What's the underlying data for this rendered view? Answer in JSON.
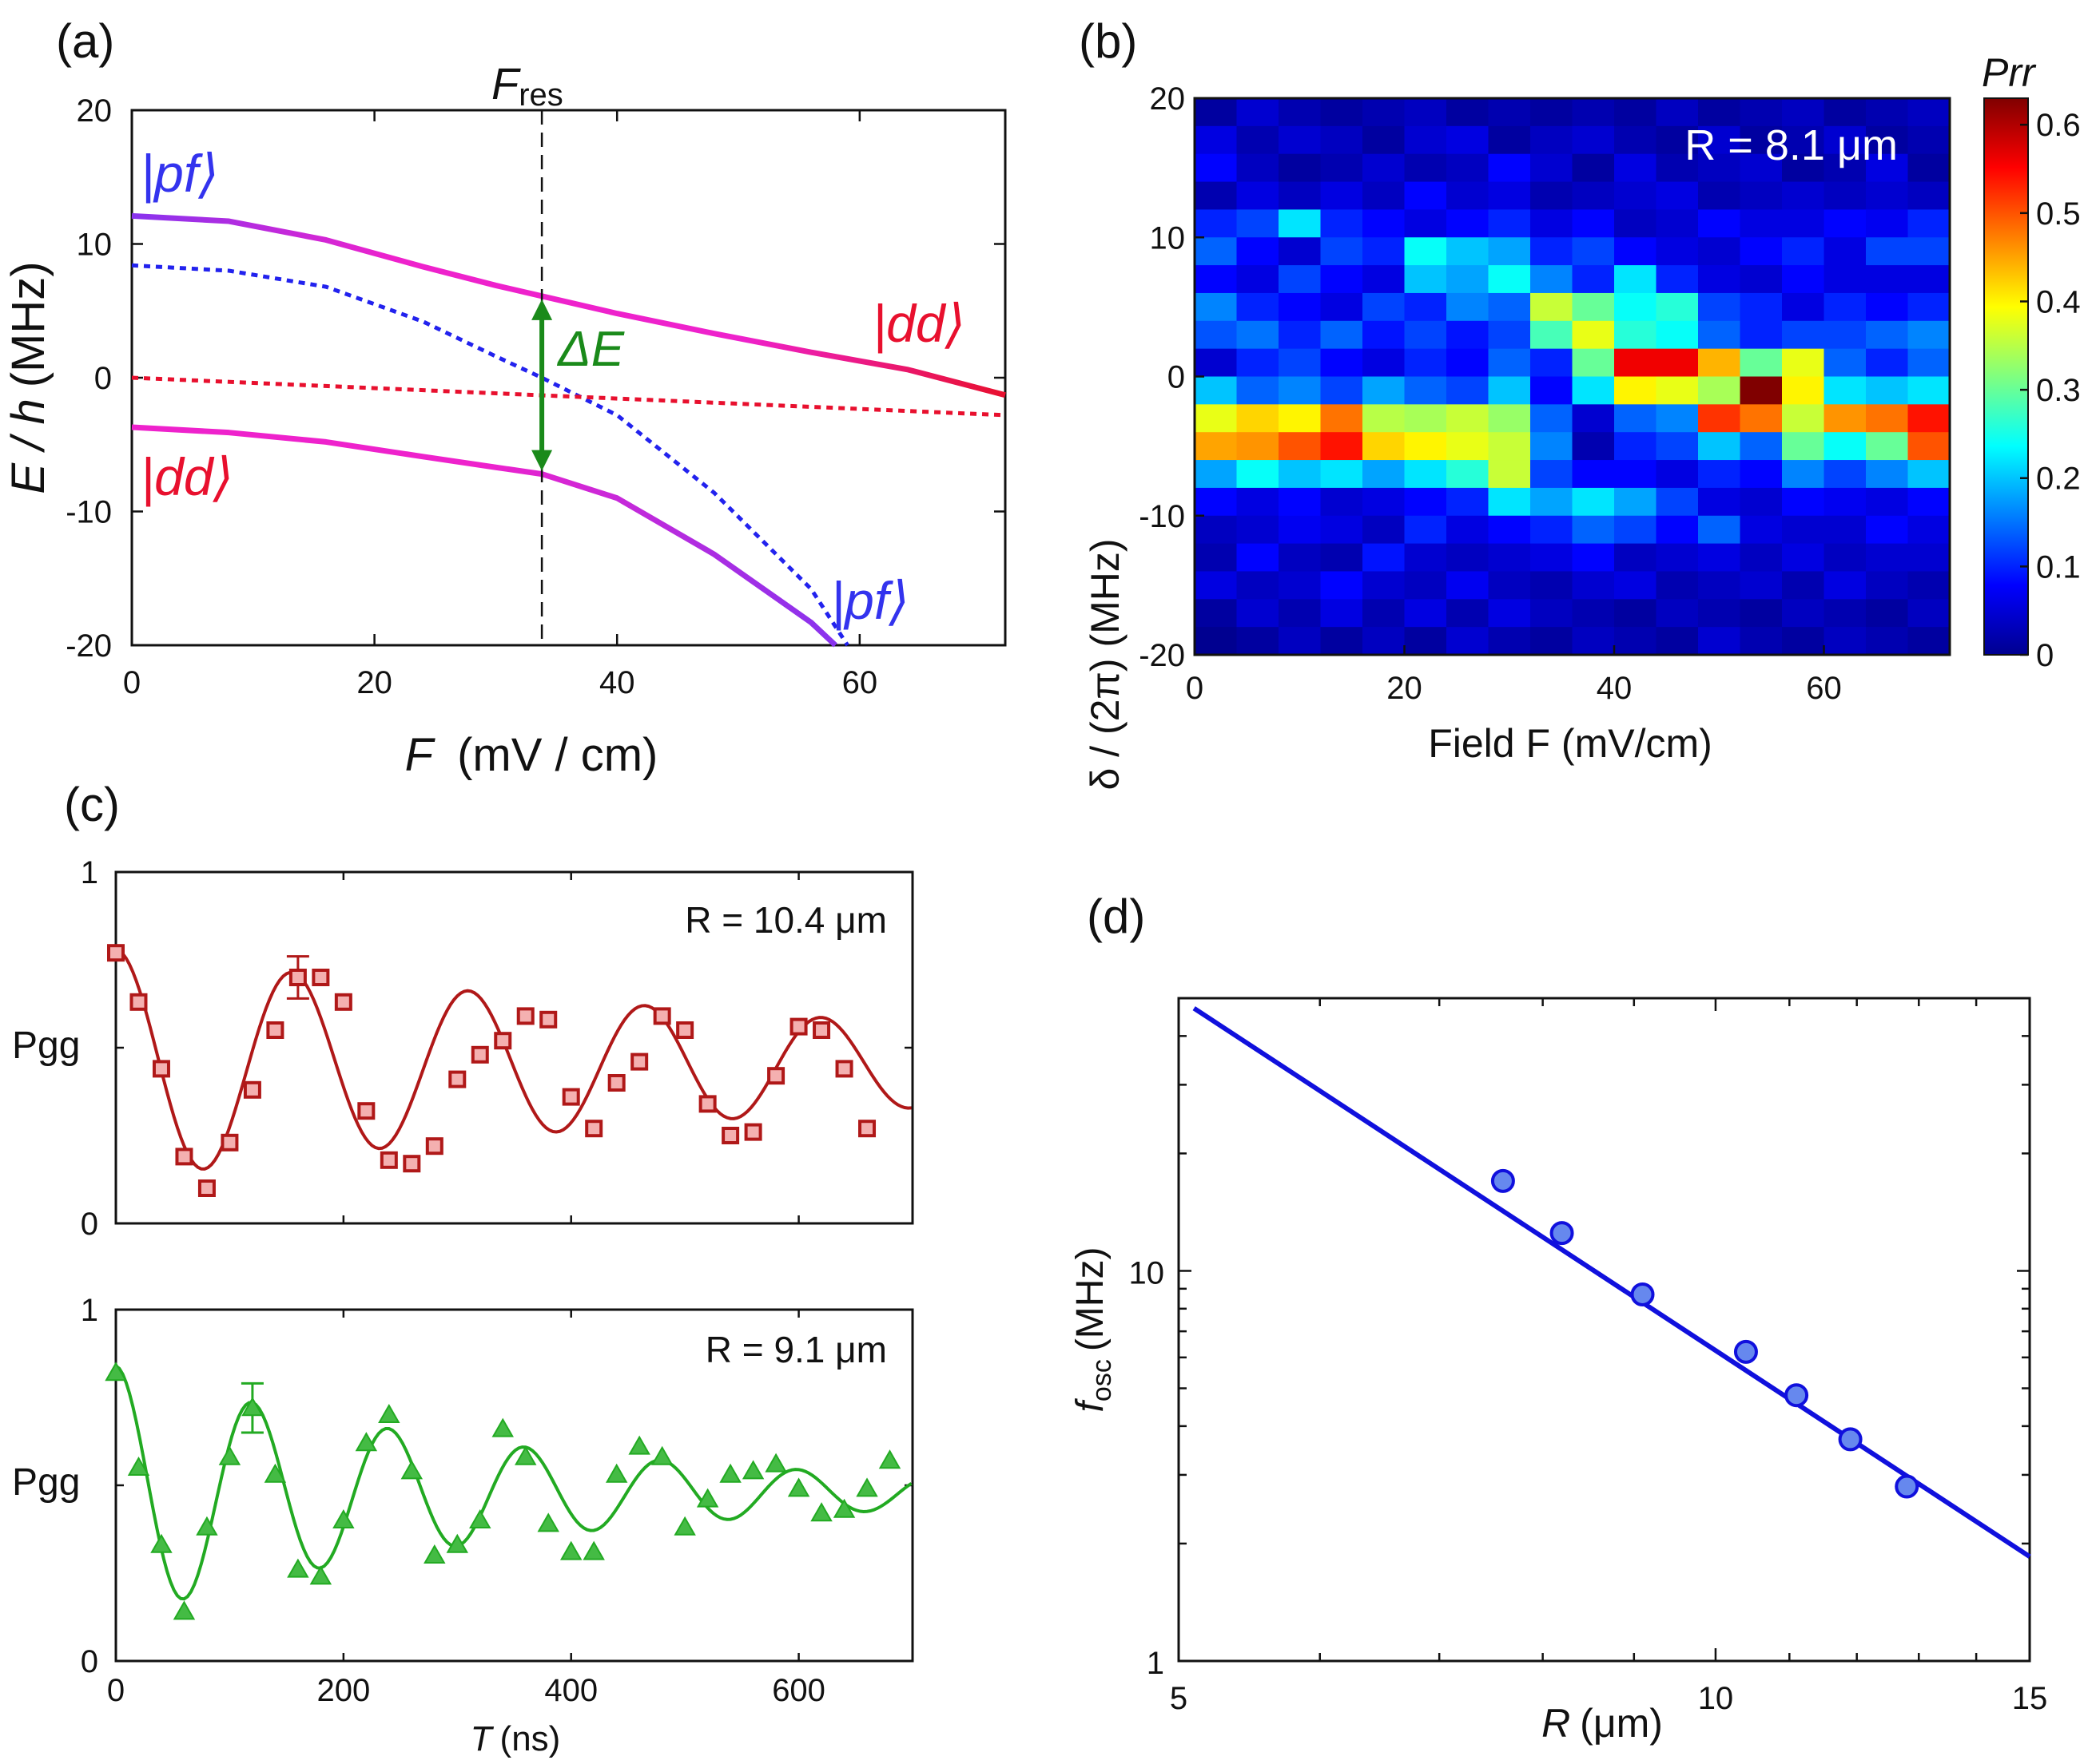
{
  "panel_labels": [
    "(a)",
    "(b)",
    "(c)",
    "(d)"
  ],
  "colors": {
    "red": "#e8102e",
    "blue": "#2222ee",
    "magenta": "#ee22cc",
    "purple": "#8833ee",
    "green_arrow": "#1a8a1a",
    "dark_red": "#b01818",
    "green": "#22aa22",
    "fit_blue": "#1010dd",
    "point_blue": "#6688ee"
  },
  "chart_data": [
    {
      "id": "a",
      "type": "line",
      "title": "",
      "xlabel_var": "F",
      "xlabel_unit": "(mV / cm)",
      "ylabel_var": "E / h",
      "ylabel_unit": "(MHz)",
      "xlim": [
        0,
        72
      ],
      "ylim": [
        -20,
        20
      ],
      "xticks": [
        0,
        20,
        40,
        60
      ],
      "yticks": [
        20,
        10,
        0,
        -10,
        -20
      ],
      "ytick_labels": [
        "20",
        "10",
        "0",
        "-10",
        "-20"
      ],
      "marker_label": "F",
      "marker_sub": "res",
      "marker_x": 33.8,
      "delta_label": "ΔE",
      "state_labels": {
        "pf": "|pf⟩",
        "dd": "|dd⟩"
      },
      "series": [
        {
          "name": "upper adiabatic",
          "style": "solid",
          "x": [
            0,
            8,
            16,
            24,
            30,
            33.8,
            40,
            48,
            56,
            64,
            72
          ],
          "y": [
            12.1,
            11.7,
            10.3,
            8.3,
            6.9,
            6.1,
            4.8,
            3.3,
            1.9,
            0.6,
            -1.3
          ]
        },
        {
          "name": "lower adiabatic",
          "style": "solid",
          "x": [
            0,
            8,
            16,
            24,
            30,
            33.8,
            40,
            48,
            56,
            58
          ],
          "y": [
            -3.7,
            -4.1,
            -4.8,
            -5.9,
            -6.7,
            -7.2,
            -9.0,
            -13.2,
            -18.3,
            -20
          ]
        },
        {
          "name": "pf diabatic",
          "style": "dotted",
          "x": [
            0,
            8,
            16,
            24,
            30,
            33.8,
            40,
            48,
            56,
            59
          ],
          "y": [
            8.4,
            8.0,
            6.8,
            4.2,
            1.6,
            0,
            -2.8,
            -8.6,
            -15.8,
            -20
          ]
        },
        {
          "name": "dd diabatic",
          "style": "dotted",
          "x": [
            0,
            72
          ],
          "y": [
            0,
            -2.8
          ]
        }
      ]
    },
    {
      "id": "b",
      "type": "heatmap",
      "xlabel": "Field F (mV/cm)",
      "ylabel": "δ / (2π) (MHz)",
      "annotation": "R = 8.1 μm",
      "colorbar_label": "Prr",
      "xlim": [
        0,
        72
      ],
      "ylim": [
        -20,
        20
      ],
      "clim": [
        0,
        0.63
      ],
      "xticks": [
        0,
        20,
        40,
        60
      ],
      "yticks": [
        20,
        10,
        0,
        -10,
        -20
      ],
      "ytick_labels": [
        "20",
        "10",
        "0",
        "-10",
        "-20"
      ],
      "cbticks": [
        0,
        0.1,
        0.2,
        0.3,
        0.4,
        0.5,
        0.6
      ],
      "cbtick_labels": [
        "0",
        "0.1",
        "0.2",
        "0.3",
        "0.4",
        "0.5",
        "0.6"
      ],
      "x_centers": [
        2,
        6,
        10,
        14,
        18,
        22,
        26,
        30,
        34,
        38,
        42,
        46,
        50,
        54,
        58,
        62,
        66,
        70
      ],
      "y_centers": [
        19,
        17,
        15,
        13,
        11,
        9,
        7,
        5,
        3,
        1,
        -1,
        -3,
        -5,
        -7,
        -9,
        -11,
        -13,
        -15,
        -17,
        -19
      ],
      "columns": [
        [
          0.02,
          0.06,
          0.08,
          0.03,
          0.1,
          0.14,
          0.08,
          0.16,
          0.13,
          0.05,
          0.2,
          0.38,
          0.45,
          0.18,
          0.08,
          0.04,
          0.03,
          0.06,
          0.02,
          0.01
        ],
        [
          0.05,
          0.03,
          0.04,
          0.06,
          0.12,
          0.08,
          0.06,
          0.1,
          0.15,
          0.1,
          0.14,
          0.42,
          0.46,
          0.24,
          0.06,
          0.05,
          0.08,
          0.04,
          0.05,
          0.02
        ],
        [
          0.03,
          0.05,
          0.02,
          0.04,
          0.22,
          0.05,
          0.12,
          0.08,
          0.1,
          0.12,
          0.16,
          0.4,
          0.5,
          0.2,
          0.08,
          0.07,
          0.04,
          0.05,
          0.03,
          0.04
        ],
        [
          0.02,
          0.04,
          0.03,
          0.06,
          0.1,
          0.12,
          0.08,
          0.06,
          0.14,
          0.08,
          0.12,
          0.48,
          0.54,
          0.22,
          0.05,
          0.06,
          0.03,
          0.08,
          0.06,
          0.02
        ],
        [
          0.03,
          0.02,
          0.05,
          0.04,
          0.08,
          0.1,
          0.06,
          0.12,
          0.09,
          0.06,
          0.18,
          0.35,
          0.42,
          0.18,
          0.06,
          0.04,
          0.09,
          0.05,
          0.03,
          0.04
        ],
        [
          0.04,
          0.05,
          0.03,
          0.08,
          0.06,
          0.24,
          0.2,
          0.1,
          0.12,
          0.1,
          0.14,
          0.34,
          0.4,
          0.22,
          0.08,
          0.1,
          0.05,
          0.04,
          0.06,
          0.02
        ],
        [
          0.02,
          0.06,
          0.04,
          0.05,
          0.08,
          0.2,
          0.18,
          0.16,
          0.09,
          0.08,
          0.12,
          0.36,
          0.38,
          0.26,
          0.1,
          0.06,
          0.04,
          0.07,
          0.03,
          0.05
        ],
        [
          0.03,
          0.02,
          0.08,
          0.06,
          0.1,
          0.18,
          0.24,
          0.14,
          0.12,
          0.14,
          0.2,
          0.33,
          0.36,
          0.36,
          0.22,
          0.08,
          0.05,
          0.04,
          0.06,
          0.03
        ],
        [
          0.02,
          0.04,
          0.05,
          0.03,
          0.06,
          0.1,
          0.16,
          0.36,
          0.28,
          0.1,
          0.08,
          0.14,
          0.16,
          0.12,
          0.18,
          0.1,
          0.06,
          0.03,
          0.04,
          0.02
        ],
        [
          0.03,
          0.05,
          0.02,
          0.04,
          0.08,
          0.12,
          0.1,
          0.3,
          0.38,
          0.3,
          0.22,
          0.05,
          0.03,
          0.08,
          0.22,
          0.14,
          0.08,
          0.05,
          0.03,
          0.04
        ],
        [
          0.02,
          0.03,
          0.06,
          0.05,
          0.04,
          0.08,
          0.22,
          0.24,
          0.26,
          0.56,
          0.4,
          0.14,
          0.1,
          0.08,
          0.18,
          0.12,
          0.04,
          0.06,
          0.02,
          0.03
        ],
        [
          0.04,
          0.02,
          0.03,
          0.06,
          0.05,
          0.06,
          0.1,
          0.26,
          0.24,
          0.56,
          0.38,
          0.16,
          0.12,
          0.06,
          0.12,
          0.08,
          0.05,
          0.03,
          0.04,
          0.02
        ],
        [
          0.02,
          0.05,
          0.04,
          0.03,
          0.08,
          0.05,
          0.06,
          0.12,
          0.14,
          0.44,
          0.34,
          0.52,
          0.2,
          0.1,
          0.06,
          0.14,
          0.06,
          0.04,
          0.03,
          0.05
        ],
        [
          0.03,
          0.02,
          0.05,
          0.04,
          0.06,
          0.08,
          0.05,
          0.1,
          0.1,
          0.3,
          0.63,
          0.48,
          0.14,
          0.08,
          0.05,
          0.06,
          0.04,
          0.05,
          0.02,
          0.03
        ],
        [
          0.04,
          0.03,
          0.02,
          0.05,
          0.06,
          0.1,
          0.08,
          0.06,
          0.12,
          0.38,
          0.4,
          0.36,
          0.3,
          0.16,
          0.08,
          0.05,
          0.06,
          0.03,
          0.04,
          0.02
        ],
        [
          0.02,
          0.05,
          0.03,
          0.04,
          0.08,
          0.06,
          0.06,
          0.1,
          0.12,
          0.14,
          0.22,
          0.46,
          0.24,
          0.12,
          0.07,
          0.05,
          0.04,
          0.06,
          0.03,
          0.04
        ],
        [
          0.03,
          0.02,
          0.06,
          0.05,
          0.07,
          0.12,
          0.06,
          0.08,
          0.14,
          0.1,
          0.2,
          0.48,
          0.3,
          0.16,
          0.06,
          0.08,
          0.05,
          0.04,
          0.02,
          0.03
        ],
        [
          0.04,
          0.03,
          0.02,
          0.04,
          0.1,
          0.12,
          0.06,
          0.1,
          0.16,
          0.14,
          0.22,
          0.54,
          0.5,
          0.2,
          0.08,
          0.06,
          0.05,
          0.03,
          0.04,
          0.02
        ]
      ]
    },
    {
      "id": "c1",
      "type": "scatter",
      "annotation": "R = 10.4 μm",
      "ylabel": "Pgg",
      "xlim": [
        0,
        700
      ],
      "ylim": [
        0,
        1
      ],
      "yticks": [
        0,
        1
      ],
      "x": [
        0,
        20,
        40,
        60,
        80,
        100,
        120,
        140,
        160,
        180,
        200,
        220,
        240,
        260,
        280,
        300,
        320,
        340,
        360,
        380,
        400,
        420,
        440,
        460,
        480,
        500,
        520,
        540,
        560,
        580,
        600,
        620,
        640,
        660
      ],
      "y": [
        0.77,
        0.63,
        0.44,
        0.19,
        0.1,
        0.23,
        0.38,
        0.55,
        0.7,
        0.7,
        0.63,
        0.32,
        0.18,
        0.17,
        0.22,
        0.41,
        0.48,
        0.52,
        0.59,
        0.58,
        0.36,
        0.27,
        0.4,
        0.46,
        0.59,
        0.55,
        0.34,
        0.25,
        0.26,
        0.42,
        0.56,
        0.55,
        0.44,
        0.27
      ],
      "error_bar": {
        "x": 160,
        "y": 0.7,
        "err": 0.06
      },
      "fit": {
        "offset": 0.45,
        "amp": 0.33,
        "freq_per_ns": 0.00645,
        "tau_ns": 700
      }
    },
    {
      "id": "c2",
      "type": "scatter",
      "annotation": "R = 9.1 μm",
      "ylabel": "Pgg",
      "xlabel_var": "T",
      "xlabel_unit": "(ns)",
      "xlim": [
        0,
        700
      ],
      "ylim": [
        0,
        1
      ],
      "yticks": [
        0,
        1
      ],
      "xticks": [
        0,
        200,
        400,
        600
      ],
      "x": [
        0,
        20,
        40,
        60,
        80,
        100,
        120,
        140,
        160,
        180,
        200,
        220,
        240,
        260,
        280,
        300,
        320,
        340,
        360,
        380,
        400,
        420,
        440,
        460,
        480,
        500,
        520,
        540,
        560,
        580,
        600,
        620,
        640,
        660,
        680
      ],
      "y": [
        0.82,
        0.55,
        0.33,
        0.14,
        0.38,
        0.58,
        0.72,
        0.53,
        0.26,
        0.24,
        0.4,
        0.62,
        0.7,
        0.54,
        0.3,
        0.33,
        0.4,
        0.66,
        0.58,
        0.39,
        0.31,
        0.31,
        0.53,
        0.61,
        0.58,
        0.38,
        0.46,
        0.53,
        0.54,
        0.56,
        0.49,
        0.42,
        0.43,
        0.49,
        0.57
      ],
      "error_bar": {
        "x": 120,
        "y": 0.72,
        "err": 0.07
      },
      "fit": {
        "offset": 0.48,
        "amp": 0.36,
        "freq_per_ns": 0.00835,
        "tau_ns": 350
      }
    },
    {
      "id": "d",
      "type": "scatter",
      "xlabel_var": "R",
      "xlabel_unit": "(μm)",
      "ylabel_var": "f",
      "ylabel_sub": "osc",
      "ylabel_unit": "(MHz)",
      "xscale": "log",
      "yscale": "log",
      "xlim": [
        5,
        15
      ],
      "ylim": [
        1,
        50
      ],
      "xticks": [
        5,
        10,
        15
      ],
      "yticks": [
        1,
        10
      ],
      "x": [
        7.6,
        8.2,
        9.1,
        10.4,
        11.1,
        11.9,
        12.8
      ],
      "y": [
        17.0,
        12.5,
        8.7,
        6.2,
        4.8,
        3.7,
        2.8
      ],
      "fit": {
        "exponent": -3,
        "x_range": [
          5.1,
          15
        ],
        "y_at_5": 50
      }
    }
  ]
}
